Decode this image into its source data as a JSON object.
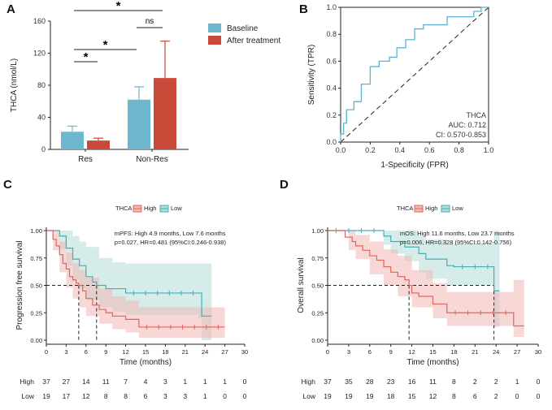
{
  "colors": {
    "baseline": "#6fb7cf",
    "after": "#c94a38",
    "high": "#e2645a",
    "low": "#45aeb0",
    "high_band": "#f2b8b5",
    "low_band": "#b4dcda",
    "roc": "#5db3cf"
  },
  "chart_data": [
    {
      "panel": "A",
      "type": "bar",
      "ylabel": "THCA (nmol/L)",
      "categories": [
        "Res",
        "Non-Res"
      ],
      "ylim": [
        0,
        160
      ],
      "yticks": [
        0,
        40,
        80,
        120,
        160
      ],
      "series": [
        {
          "name": "Baseline",
          "values": [
            22,
            62
          ],
          "err": [
            7,
            16
          ]
        },
        {
          "name": "After treatment",
          "values": [
            11,
            89
          ],
          "err": [
            3,
            46
          ]
        }
      ],
      "annotations": [
        "*",
        "*",
        "*",
        "ns"
      ]
    },
    {
      "panel": "B",
      "type": "line",
      "xlabel": "1-Specificity (FPR)",
      "ylabel": "Sensitivity (TPR)",
      "ticks": [
        "0.0",
        "0.2",
        "0.4",
        "0.6",
        "0.8",
        "1.0"
      ],
      "roc": [
        [
          0,
          0
        ],
        [
          0,
          0.06
        ],
        [
          0.02,
          0.06
        ],
        [
          0.02,
          0.14
        ],
        [
          0.04,
          0.14
        ],
        [
          0.04,
          0.24
        ],
        [
          0.09,
          0.24
        ],
        [
          0.09,
          0.3
        ],
        [
          0.14,
          0.3
        ],
        [
          0.14,
          0.43
        ],
        [
          0.2,
          0.43
        ],
        [
          0.2,
          0.56
        ],
        [
          0.26,
          0.56
        ],
        [
          0.26,
          0.6
        ],
        [
          0.33,
          0.6
        ],
        [
          0.33,
          0.63
        ],
        [
          0.38,
          0.63
        ],
        [
          0.38,
          0.7
        ],
        [
          0.44,
          0.7
        ],
        [
          0.44,
          0.76
        ],
        [
          0.5,
          0.76
        ],
        [
          0.5,
          0.84
        ],
        [
          0.56,
          0.84
        ],
        [
          0.56,
          0.87
        ],
        [
          0.72,
          0.87
        ],
        [
          0.72,
          0.93
        ],
        [
          0.9,
          0.93
        ],
        [
          0.9,
          0.97
        ],
        [
          0.95,
          0.97
        ],
        [
          0.95,
          1.0
        ],
        [
          1.0,
          1.0
        ]
      ],
      "legend": [
        "THCA",
        "AUC: 0.712",
        "CI: 0.570-0.853"
      ]
    },
    {
      "panel": "C",
      "type": "line",
      "legend_title": "THCA",
      "legend": [
        "High",
        "Low"
      ],
      "xlabel": "Time (months)",
      "ylabel": "Progression free survival",
      "xticks": [
        0,
        3,
        6,
        9,
        12,
        15,
        18,
        21,
        24,
        27,
        30
      ],
      "yticks": [
        "0.00",
        "0.25",
        "0.50",
        "0.75",
        "1.00"
      ],
      "stats": [
        "mPFS: High 4.9 months, Low 7.6 months",
        "p=0.027, HR=0.481 (95%CI:0.246-0.938)"
      ],
      "median_high": 4.9,
      "median_low": 7.6,
      "high": [
        [
          0,
          1
        ],
        [
          1,
          0.92
        ],
        [
          1.5,
          0.86
        ],
        [
          2,
          0.78
        ],
        [
          2.5,
          0.7
        ],
        [
          3,
          0.65
        ],
        [
          3.5,
          0.58
        ],
        [
          4,
          0.55
        ],
        [
          4.5,
          0.52
        ],
        [
          4.9,
          0.5
        ],
        [
          5.5,
          0.45
        ],
        [
          6,
          0.38
        ],
        [
          7,
          0.32
        ],
        [
          8,
          0.28
        ],
        [
          9,
          0.25
        ],
        [
          10,
          0.22
        ],
        [
          12,
          0.19
        ],
        [
          14,
          0.12
        ],
        [
          27,
          0.12
        ]
      ],
      "high_lo": [
        [
          0,
          1
        ],
        [
          1,
          0.82
        ],
        [
          2,
          0.62
        ],
        [
          3,
          0.48
        ],
        [
          4,
          0.38
        ],
        [
          5,
          0.3
        ],
        [
          6,
          0.22
        ],
        [
          8,
          0.15
        ],
        [
          10,
          0.1
        ],
        [
          12,
          0.07
        ],
        [
          14,
          0.02
        ],
        [
          27,
          0.02
        ]
      ],
      "high_hi": [
        [
          0,
          1
        ],
        [
          1,
          1
        ],
        [
          2,
          0.9
        ],
        [
          3,
          0.8
        ],
        [
          4,
          0.7
        ],
        [
          5,
          0.64
        ],
        [
          6,
          0.57
        ],
        [
          8,
          0.47
        ],
        [
          10,
          0.4
        ],
        [
          12,
          0.36
        ],
        [
          14,
          0.3
        ],
        [
          27,
          0.3
        ]
      ],
      "low": [
        [
          0,
          1
        ],
        [
          2,
          0.95
        ],
        [
          3,
          0.84
        ],
        [
          4,
          0.74
        ],
        [
          5,
          0.68
        ],
        [
          6,
          0.58
        ],
        [
          7,
          0.53
        ],
        [
          7.6,
          0.5
        ],
        [
          9,
          0.47
        ],
        [
          12,
          0.43
        ],
        [
          23,
          0.43
        ],
        [
          23.5,
          0.22
        ],
        [
          25,
          0.22
        ]
      ],
      "low_lo": [
        [
          0,
          1
        ],
        [
          2,
          0.83
        ],
        [
          3,
          0.68
        ],
        [
          4,
          0.55
        ],
        [
          5,
          0.47
        ],
        [
          6,
          0.37
        ],
        [
          8,
          0.3
        ],
        [
          10,
          0.26
        ],
        [
          12,
          0.23
        ],
        [
          23,
          0.2
        ],
        [
          23.5,
          0.0
        ],
        [
          25,
          0.0
        ]
      ],
      "low_hi": [
        [
          0,
          1
        ],
        [
          3,
          1
        ],
        [
          4,
          0.95
        ],
        [
          5,
          0.9
        ],
        [
          6,
          0.85
        ],
        [
          8,
          0.75
        ],
        [
          10,
          0.71
        ],
        [
          12,
          0.7
        ],
        [
          23,
          0.7
        ],
        [
          23.5,
          0.7
        ],
        [
          25,
          0.88
        ]
      ],
      "risk_high": [
        37,
        27,
        14,
        11,
        7,
        4,
        3,
        1,
        1,
        1,
        0
      ],
      "risk_low": [
        19,
        17,
        12,
        8,
        8,
        6,
        3,
        3,
        1,
        0,
        0
      ]
    },
    {
      "panel": "D",
      "type": "line",
      "legend_title": "THCA",
      "legend": [
        "High",
        "Low"
      ],
      "xlabel": "Time (months)",
      "ylabel": "Overall survival",
      "xticks": [
        0,
        3,
        6,
        9,
        12,
        15,
        18,
        21,
        24,
        27,
        30
      ],
      "yticks": [
        "0.00",
        "0.25",
        "0.50",
        "0.75",
        "1.00"
      ],
      "stats": [
        "mOS: High 11.6 months, Low 23.7 months",
        "p=0.006, HR=0.328 (95%CI:0.142-0.756)"
      ],
      "median_high": 11.6,
      "median_low": 23.7,
      "high": [
        [
          0,
          1
        ],
        [
          2,
          1
        ],
        [
          2.5,
          0.94
        ],
        [
          3.5,
          0.9
        ],
        [
          4,
          0.86
        ],
        [
          5,
          0.82
        ],
        [
          6,
          0.77
        ],
        [
          7,
          0.73
        ],
        [
          8,
          0.67
        ],
        [
          9,
          0.62
        ],
        [
          10,
          0.58
        ],
        [
          11,
          0.55
        ],
        [
          11.6,
          0.5
        ],
        [
          12,
          0.43
        ],
        [
          13,
          0.4
        ],
        [
          15,
          0.33
        ],
        [
          17,
          0.25
        ],
        [
          26,
          0.25
        ],
        [
          26.5,
          0.13
        ],
        [
          28,
          0.13
        ]
      ],
      "high_lo": [
        [
          0,
          1
        ],
        [
          2,
          1
        ],
        [
          3,
          0.82
        ],
        [
          4,
          0.74
        ],
        [
          6,
          0.6
        ],
        [
          8,
          0.5
        ],
        [
          10,
          0.4
        ],
        [
          12,
          0.3
        ],
        [
          15,
          0.2
        ],
        [
          17,
          0.13
        ],
        [
          26,
          0.13
        ],
        [
          26.5,
          0.03
        ],
        [
          28,
          0.03
        ]
      ],
      "high_hi": [
        [
          0,
          1
        ],
        [
          2,
          1
        ],
        [
          3,
          1
        ],
        [
          4,
          0.96
        ],
        [
          6,
          0.9
        ],
        [
          8,
          0.83
        ],
        [
          10,
          0.77
        ],
        [
          12,
          0.64
        ],
        [
          15,
          0.52
        ],
        [
          17,
          0.44
        ],
        [
          26,
          0.44
        ],
        [
          26.5,
          0.55
        ],
        [
          28,
          0.55
        ]
      ],
      "low": [
        [
          0,
          1
        ],
        [
          7,
          1
        ],
        [
          8,
          0.95
        ],
        [
          9,
          0.9
        ],
        [
          11,
          0.85
        ],
        [
          13,
          0.79
        ],
        [
          14,
          0.74
        ],
        [
          17,
          0.68
        ],
        [
          18,
          0.67
        ],
        [
          23.5,
          0.67
        ],
        [
          23.7,
          0.45
        ],
        [
          24.5,
          0.45
        ]
      ],
      "low_lo": [
        [
          0,
          1
        ],
        [
          7,
          1
        ],
        [
          8,
          0.87
        ],
        [
          9,
          0.79
        ],
        [
          11,
          0.72
        ],
        [
          13,
          0.62
        ],
        [
          14,
          0.56
        ],
        [
          17,
          0.5
        ],
        [
          23.5,
          0.5
        ],
        [
          23.7,
          0.12
        ],
        [
          24.5,
          0.12
        ]
      ],
      "low_hi": [
        [
          0,
          1
        ],
        [
          9,
          1
        ],
        [
          11,
          1
        ],
        [
          13,
          0.95
        ],
        [
          14,
          0.92
        ],
        [
          17,
          0.88
        ],
        [
          23.5,
          0.88
        ],
        [
          23.7,
          1.0
        ],
        [
          24.5,
          1.0
        ]
      ],
      "risk_high": [
        37,
        35,
        28,
        23,
        16,
        11,
        8,
        2,
        2,
        1,
        0
      ],
      "risk_low": [
        19,
        19,
        19,
        18,
        15,
        12,
        8,
        6,
        2,
        0,
        0
      ]
    }
  ],
  "panels": {
    "a": "A",
    "b": "B",
    "c": "C",
    "d": "D"
  },
  "legendA": {
    "baseline": "Baseline",
    "after": "After treatment"
  },
  "risk_labels": {
    "high": "High",
    "low": "Low"
  }
}
